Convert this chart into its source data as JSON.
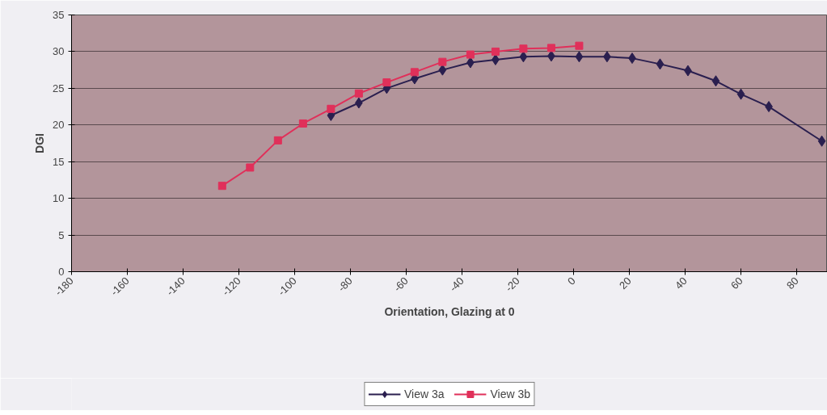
{
  "chart_data": {
    "type": "line",
    "xlabel": "Orientation, Glazing at 0",
    "ylabel": "DGI",
    "xlim": [
      -180,
      91
    ],
    "xticks": [
      -180,
      -160,
      -140,
      -120,
      -100,
      -80,
      -60,
      -40,
      -20,
      0,
      20,
      40,
      60,
      80
    ],
    "ylim": [
      0,
      35
    ],
    "yticks": [
      0,
      5,
      10,
      15,
      20,
      25,
      30,
      35
    ],
    "grid": "y",
    "legend": "bottom",
    "series": [
      {
        "name": "View 3a",
        "color": "#2a1f4f",
        "marker": "diamond",
        "x": [
          -87,
          -77,
          -67,
          -57,
          -47,
          -37,
          -28,
          -18,
          -8,
          2,
          12,
          21,
          31,
          41,
          51,
          60,
          70,
          89
        ],
        "values": [
          21.3,
          23.0,
          25.0,
          26.3,
          27.5,
          28.5,
          28.9,
          29.3,
          29.4,
          29.3,
          29.3,
          29.1,
          28.3,
          27.4,
          26.0,
          24.2,
          22.5,
          17.8
        ]
      },
      {
        "name": "View 3b",
        "color": "#e0305a",
        "marker": "square",
        "x": [
          -126,
          -116,
          -106,
          -97,
          -87,
          -77,
          -67,
          -57,
          -47,
          -37,
          -28,
          -18,
          -8,
          2
        ],
        "values": [
          11.7,
          14.2,
          17.9,
          20.2,
          22.2,
          24.3,
          25.8,
          27.2,
          28.6,
          29.6,
          30.0,
          30.4,
          30.5,
          30.8
        ]
      }
    ]
  }
}
